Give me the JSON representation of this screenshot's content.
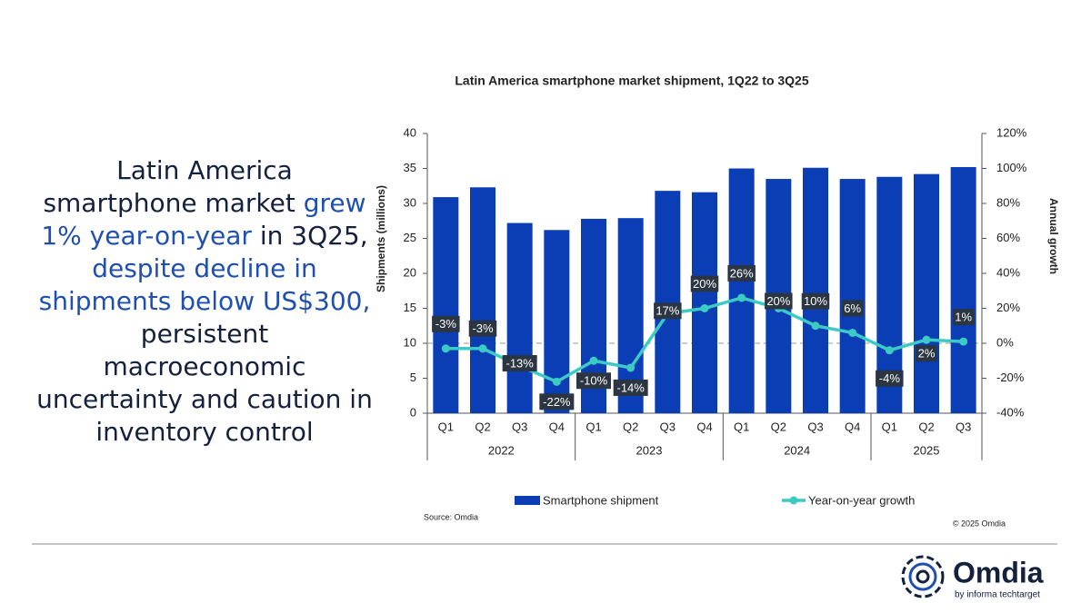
{
  "headline": [
    {
      "text": "Latin America smartphone market",
      "highlight": false
    },
    {
      "text": "grew 1% year-on-year",
      "highlight": true
    },
    {
      "text": "in 3Q25,",
      "highlight": false
    },
    {
      "text": "despite decline in shipments below US$300,",
      "highlight": true
    },
    {
      "text": "persistent macroeconomic uncertainty and caution in inventory control",
      "highlight": false
    }
  ],
  "chart_data": {
    "type": "bar_line",
    "title": "Latin America smartphone market shipment, 1Q22 to 3Q25",
    "y_label": "Shipments (millions)",
    "y2_label": "Annual growth",
    "categories": [
      "Q1",
      "Q2",
      "Q3",
      "Q4",
      "Q1",
      "Q2",
      "Q3",
      "Q4",
      "Q1",
      "Q2",
      "Q3",
      "Q4",
      "Q1",
      "Q2",
      "Q3"
    ],
    "groups": [
      {
        "name": "2022",
        "count": 4
      },
      {
        "name": "2023",
        "count": 4
      },
      {
        "name": "2024",
        "count": 4
      },
      {
        "name": "2025",
        "count": 3
      }
    ],
    "series": [
      {
        "name": "Smartphone shipment",
        "color": "#0b3db5",
        "values": [
          30.9,
          32.3,
          27.2,
          26.2,
          27.8,
          27.9,
          31.8,
          31.6,
          35.0,
          33.5,
          35.1,
          33.5,
          33.8,
          34.2,
          35.2
        ]
      },
      {
        "name": "Year-on-year growth",
        "color": "#3ccbc4",
        "axis": "y2",
        "values": [
          -3,
          -3,
          -13,
          -22,
          -10,
          -14,
          17,
          20,
          26,
          20,
          10,
          6,
          -4,
          2,
          1
        ],
        "value_labels": [
          "-3%",
          "-3%",
          "-13%",
          "-22%",
          "-10%",
          "-14%",
          "17%",
          "20%",
          "26%",
          "20%",
          "10%",
          "6%",
          "-4%",
          "2%",
          "1%"
        ]
      }
    ],
    "ylim": [
      0,
      40
    ],
    "yticks": [
      0,
      5,
      10,
      15,
      20,
      25,
      30,
      35,
      40
    ],
    "y2lim": [
      -40,
      120
    ],
    "y2ticks": [
      {
        "value": -40,
        "label": "-40%"
      },
      {
        "value": -20,
        "label": "-20%"
      },
      {
        "value": 0,
        "label": "0%"
      },
      {
        "value": 20,
        "label": "20%"
      },
      {
        "value": 40,
        "label": "40%"
      },
      {
        "value": 60,
        "label": "60%"
      },
      {
        "value": 80,
        "label": "80%"
      },
      {
        "value": 100,
        "label": "100%"
      },
      {
        "value": 120,
        "label": "120%"
      }
    ],
    "legend": "bottom",
    "source": "Source: Omdia",
    "copyright": "© 2025 Omdia"
  },
  "logo": {
    "name": "Omdia",
    "tagline": "by informa techtarget"
  }
}
